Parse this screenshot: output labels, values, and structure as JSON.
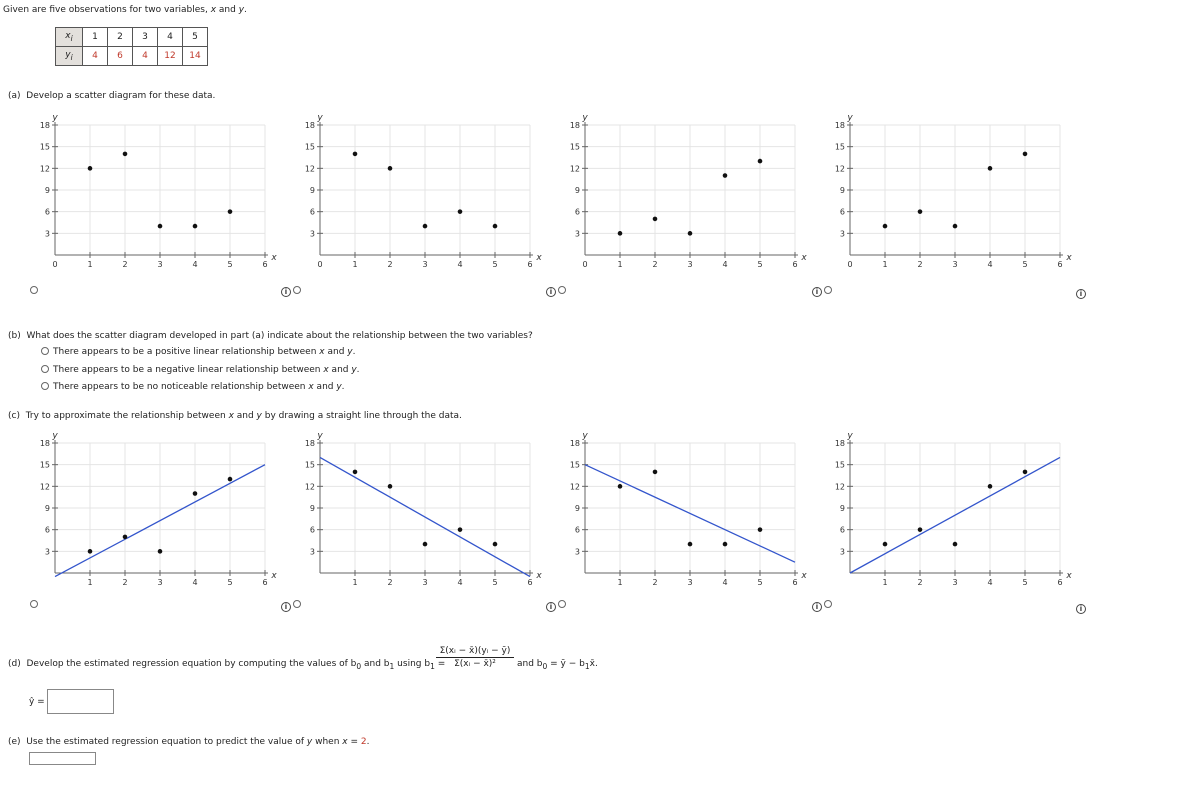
{
  "intro": "Given are five observations for two variables, x and y.",
  "observations": {
    "x_label": "x",
    "y_label": "y",
    "x": [
      "1",
      "2",
      "3",
      "4",
      "5"
    ],
    "y": [
      "4",
      "6",
      "4",
      "12",
      "14"
    ]
  },
  "part_a": {
    "label": "(a)",
    "text": "Develop a scatter diagram for these data."
  },
  "part_b": {
    "label": "(b)",
    "text": "What does the scatter diagram developed in part (a) indicate about the relationship between the two variables?",
    "options": [
      "There appears to be a positive linear relationship between x and y.",
      "There appears to be a negative linear relationship between x and y.",
      "There appears to be no noticeable relationship between x and y."
    ]
  },
  "part_c": {
    "label": "(c)",
    "text": "Try to approximate the relationship between x and y by drawing a straight line through the data."
  },
  "part_d": {
    "label": "(d)",
    "text": "Develop the estimated regression equation by computing the values of b",
    "text_sub0": "0",
    "text_and": " and b",
    "text_sub1": "1",
    "text_using": " using b",
    "text_using_sub": "1",
    "text_eq": " =",
    "numerator": "Σ(xᵢ − x̄)(yᵢ − ȳ)",
    "denominator": "Σ(xᵢ − x̄)²",
    "and_text": "and b",
    "and_sub": "0",
    "and_rest": " = ȳ − b",
    "and_rest_sub": "1",
    "and_rest_end": "x̄.",
    "yhat_label": "ŷ =",
    "yhat_value": ""
  },
  "part_e": {
    "label": "(e)",
    "text_a": "Use the estimated regression equation to predict the value of y when x = ",
    "x_value": "2",
    "text_b": ".",
    "answer_value": ""
  },
  "info_icon": "info-icon",
  "chart_data": [
    {
      "type": "scatter",
      "group": "a",
      "xlim": [
        0,
        6
      ],
      "ylim": [
        0,
        18
      ],
      "xticks": [
        0,
        1,
        2,
        3,
        4,
        5,
        6
      ],
      "yticks": [
        3,
        6,
        9,
        12,
        15,
        18
      ],
      "xlabel": "x",
      "ylabel": "y",
      "points": [
        [
          1,
          12
        ],
        [
          2,
          14
        ],
        [
          3,
          4
        ],
        [
          4,
          4
        ],
        [
          5,
          6
        ]
      ]
    },
    {
      "type": "scatter",
      "group": "a",
      "xlim": [
        0,
        6
      ],
      "ylim": [
        0,
        18
      ],
      "xticks": [
        0,
        1,
        2,
        3,
        4,
        5,
        6
      ],
      "yticks": [
        3,
        6,
        9,
        12,
        15,
        18
      ],
      "xlabel": "x",
      "ylabel": "y",
      "points": [
        [
          1,
          14
        ],
        [
          2,
          12
        ],
        [
          3,
          4
        ],
        [
          4,
          6
        ],
        [
          5,
          4
        ]
      ]
    },
    {
      "type": "scatter",
      "group": "a",
      "xlim": [
        0,
        6
      ],
      "ylim": [
        0,
        18
      ],
      "xticks": [
        0,
        1,
        2,
        3,
        4,
        5,
        6
      ],
      "yticks": [
        3,
        6,
        9,
        12,
        15,
        18
      ],
      "xlabel": "x",
      "ylabel": "y",
      "points": [
        [
          1,
          3
        ],
        [
          2,
          5
        ],
        [
          3,
          3
        ],
        [
          4,
          11
        ],
        [
          5,
          13
        ]
      ]
    },
    {
      "type": "scatter",
      "group": "a",
      "xlim": [
        0,
        6
      ],
      "ylim": [
        0,
        18
      ],
      "xticks": [
        0,
        1,
        2,
        3,
        4,
        5,
        6
      ],
      "yticks": [
        3,
        6,
        9,
        12,
        15,
        18
      ],
      "xlabel": "x",
      "ylabel": "y",
      "points": [
        [
          1,
          4
        ],
        [
          2,
          6
        ],
        [
          3,
          4
        ],
        [
          4,
          12
        ],
        [
          5,
          14
        ]
      ]
    },
    {
      "type": "scatter",
      "group": "c",
      "xlim": [
        0,
        6
      ],
      "ylim": [
        0,
        18
      ],
      "xticks": [
        1,
        2,
        3,
        4,
        5,
        6
      ],
      "yticks": [
        3,
        6,
        9,
        12,
        15,
        18
      ],
      "xlabel": "x",
      "ylabel": "y",
      "points": [
        [
          1,
          3
        ],
        [
          2,
          5
        ],
        [
          3,
          3
        ],
        [
          4,
          11
        ],
        [
          5,
          13
        ]
      ],
      "line": [
        [
          0,
          -0.5
        ],
        [
          6,
          15
        ]
      ],
      "line_color": "#3355cc"
    },
    {
      "type": "scatter",
      "group": "c",
      "xlim": [
        0,
        6
      ],
      "ylim": [
        0,
        18
      ],
      "xticks": [
        1,
        2,
        3,
        4,
        5,
        6
      ],
      "yticks": [
        3,
        6,
        9,
        12,
        15,
        18
      ],
      "xlabel": "x",
      "ylabel": "y",
      "points": [
        [
          1,
          14
        ],
        [
          2,
          12
        ],
        [
          3,
          4
        ],
        [
          4,
          6
        ],
        [
          5,
          4
        ]
      ],
      "line": [
        [
          0,
          16
        ],
        [
          6,
          -0.5
        ]
      ],
      "line_color": "#3355cc"
    },
    {
      "type": "scatter",
      "group": "c",
      "xlim": [
        0,
        6
      ],
      "ylim": [
        0,
        18
      ],
      "xticks": [
        1,
        2,
        3,
        4,
        5,
        6
      ],
      "yticks": [
        3,
        6,
        9,
        12,
        15,
        18
      ],
      "xlabel": "x",
      "ylabel": "y",
      "points": [
        [
          1,
          12
        ],
        [
          2,
          14
        ],
        [
          3,
          4
        ],
        [
          4,
          4
        ],
        [
          5,
          6
        ]
      ],
      "line": [
        [
          0,
          15
        ],
        [
          6,
          1.5
        ]
      ],
      "line_color": "#3355cc"
    },
    {
      "type": "scatter",
      "group": "c",
      "xlim": [
        0,
        6
      ],
      "ylim": [
        0,
        18
      ],
      "xticks": [
        1,
        2,
        3,
        4,
        5,
        6
      ],
      "yticks": [
        3,
        6,
        9,
        12,
        15,
        18
      ],
      "xlabel": "x",
      "ylabel": "y",
      "points": [
        [
          1,
          4
        ],
        [
          2,
          6
        ],
        [
          3,
          4
        ],
        [
          4,
          12
        ],
        [
          5,
          14
        ]
      ],
      "line": [
        [
          0,
          0
        ],
        [
          6,
          16
        ]
      ],
      "line_color": "#3355cc"
    }
  ]
}
